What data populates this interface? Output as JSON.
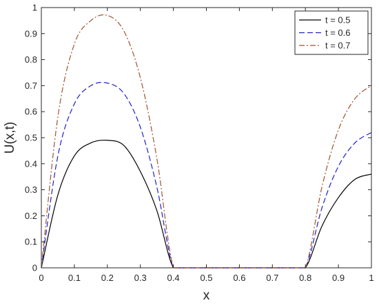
{
  "chart_data": {
    "type": "line",
    "title": "",
    "xlabel": "x",
    "ylabel": "U(x,t)",
    "xlim": [
      0,
      1
    ],
    "ylim": [
      0,
      1
    ],
    "x_ticks": [
      0,
      0.1,
      0.2,
      0.3,
      0.4,
      0.5,
      0.6,
      0.7,
      0.8,
      0.9,
      1
    ],
    "x_tick_labels": [
      "0",
      "0.1",
      "0.2",
      "0.3",
      "0.4",
      "0.5",
      "0.6",
      "0.7",
      "0.8",
      "0.9",
      "1"
    ],
    "y_ticks": [
      0,
      0.1,
      0.2,
      0.3,
      0.4,
      0.5,
      0.6,
      0.7,
      0.8,
      0.9,
      1
    ],
    "y_tick_labels": [
      "0",
      "0.1",
      "0.2",
      "0.3",
      "0.4",
      "0.5",
      "0.6",
      "0.7",
      "0.8",
      "0.9",
      "1"
    ],
    "grid": false,
    "legend_position": "top-right",
    "x": [
      0,
      0.05,
      0.1,
      0.15,
      0.2,
      0.25,
      0.3,
      0.35,
      0.4,
      0.45,
      0.5,
      0.55,
      0.6,
      0.65,
      0.7,
      0.75,
      0.8,
      0.85,
      0.9,
      0.95,
      1.0
    ],
    "series": [
      {
        "name": "t = 0.5",
        "color": "#000000",
        "dash": "solid",
        "values": [
          0,
          0.28,
          0.43,
          0.48,
          0.49,
          0.47,
          0.37,
          0.22,
          0,
          0,
          0,
          0,
          0,
          0,
          0,
          0,
          0,
          0.16,
          0.27,
          0.34,
          0.36
        ]
      },
      {
        "name": "t = 0.6",
        "color": "#1f1fcc",
        "dash": "dashed",
        "values": [
          0,
          0.43,
          0.63,
          0.7,
          0.71,
          0.67,
          0.54,
          0.31,
          0,
          0,
          0,
          0,
          0,
          0,
          0,
          0,
          0,
          0.23,
          0.39,
          0.48,
          0.52
        ]
      },
      {
        "name": "t = 0.7",
        "color": "#a0522d",
        "dash": "dashdot",
        "values": [
          0,
          0.58,
          0.86,
          0.95,
          0.97,
          0.91,
          0.73,
          0.42,
          0,
          0,
          0,
          0,
          0,
          0,
          0,
          0,
          0,
          0.31,
          0.53,
          0.65,
          0.7
        ]
      }
    ]
  }
}
